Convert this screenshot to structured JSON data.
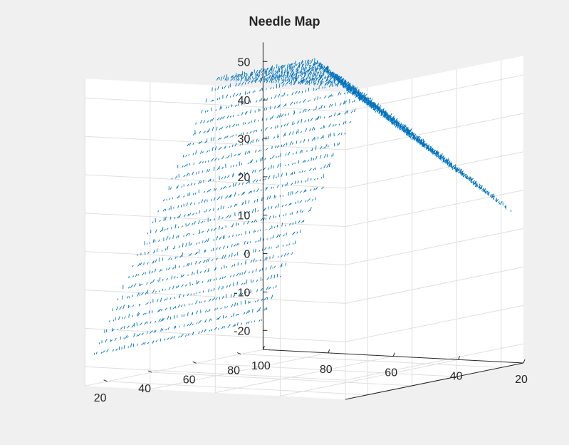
{
  "chart_data": {
    "type": "needle-3d",
    "title": "Needle Map",
    "xlabel": "",
    "ylabel": "",
    "zlabel": "",
    "x_ticks": [
      100,
      80,
      60,
      40,
      20
    ],
    "y_ticks": [
      80,
      60,
      40,
      20
    ],
    "z_ticks": [
      50,
      40,
      30,
      20,
      10,
      0,
      -10,
      -20
    ],
    "xlim": [
      20,
      100
    ],
    "ylim": [
      10,
      90
    ],
    "zlim": [
      -25,
      55
    ],
    "grid": true,
    "box": "back-planes",
    "series": [
      {
        "color": "#0072bd",
        "style": "short-needles",
        "surface": "ridge"
      }
    ]
  }
}
